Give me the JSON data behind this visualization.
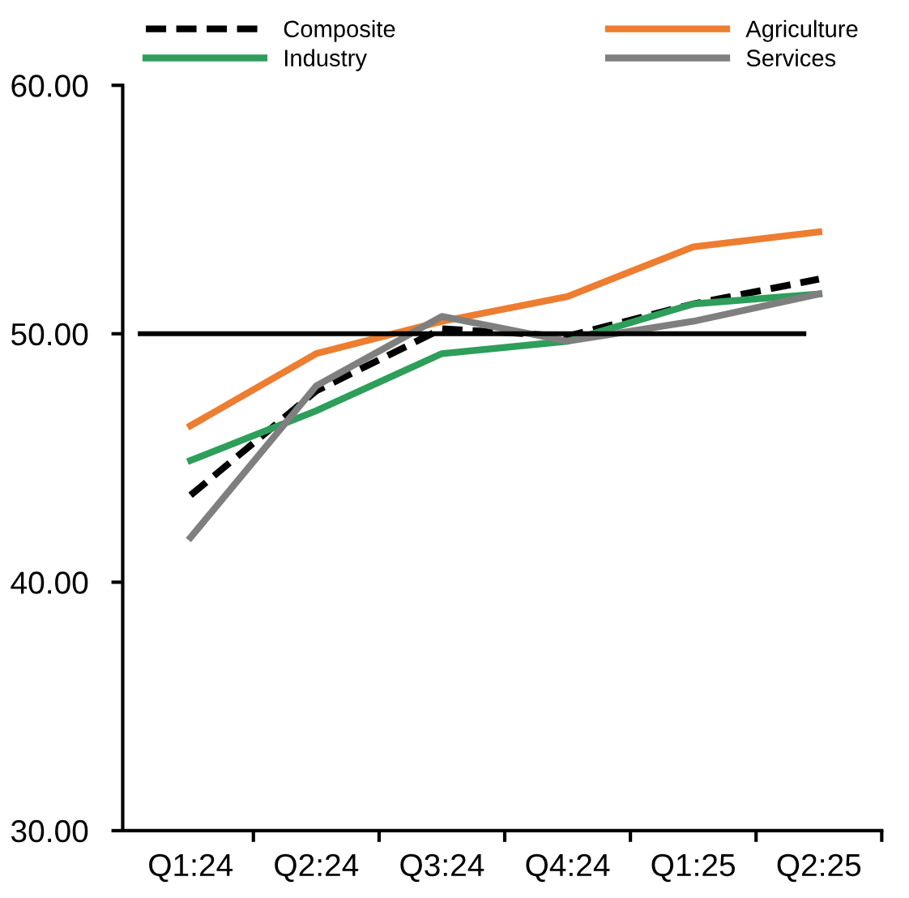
{
  "chart_data": {
    "type": "line",
    "categories": [
      "Q1:24",
      "Q2:24",
      "Q3:24",
      "Q4:24",
      "Q1:25",
      "Q2:25"
    ],
    "series": [
      {
        "name": "Composite",
        "color": "#000000",
        "line_style": "dashed",
        "values": [
          43.5,
          47.7,
          50.2,
          49.9,
          51.2,
          52.2
        ]
      },
      {
        "name": "Agriculture",
        "color": "#ed7d31",
        "values": [
          46.3,
          49.2,
          50.5,
          51.5,
          53.5,
          54.1
        ]
      },
      {
        "name": "Industry",
        "color": "#2e9e5b",
        "values": [
          44.9,
          46.9,
          49.2,
          49.7,
          51.2,
          51.6
        ]
      },
      {
        "name": "Services",
        "color": "#7f7f7f",
        "values": [
          41.8,
          47.9,
          50.7,
          49.7,
          50.5,
          51.6
        ]
      }
    ],
    "ylim": [
      30,
      60
    ],
    "yticks": [
      {
        "value": 30,
        "label": "30.00"
      },
      {
        "value": 40,
        "label": "40.00"
      },
      {
        "value": 50,
        "label": "50.00"
      },
      {
        "value": 60,
        "label": "60.00"
      }
    ],
    "ref_lines": [
      {
        "axis": "y",
        "value": 50,
        "color": "#000000"
      }
    ],
    "legend": "top",
    "grid": false,
    "marker": "none",
    "line_style": "solid"
  }
}
